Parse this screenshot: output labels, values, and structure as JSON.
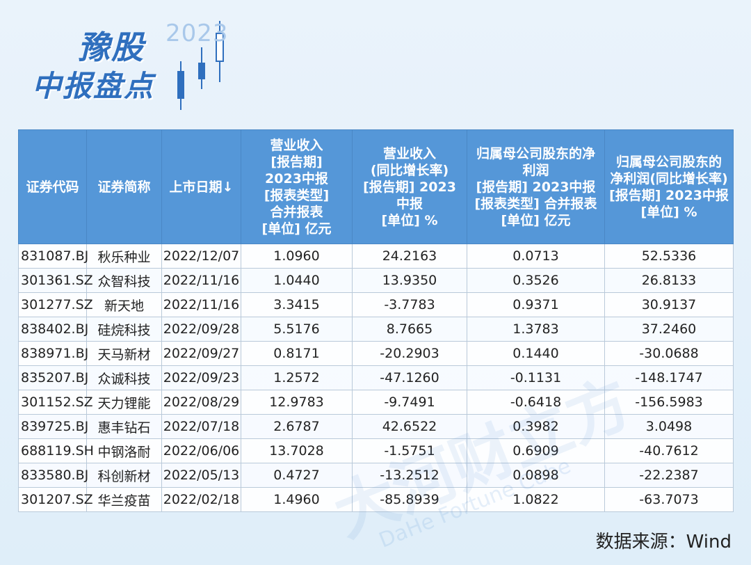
{
  "header": {
    "title": "豫股",
    "subtitle": "中报盘点",
    "year": "2023"
  },
  "table": {
    "headers": [
      "证券代码",
      "证券简称",
      "上市日期↓",
      "营业收入\n[报告期]\n2023中报\n[报表类型]\n合并报表\n[单位] 亿元",
      "营业收入\n(同比增长率)\n[报告期] 2023\n中报\n[单位] %",
      "归属母公司股东的净\n利润\n[报告期] 2023中报\n[报表类型] 合并报表\n[单位] 亿元",
      "归属母公司股东的\n净利润(同比增长率)\n[报告期] 2023中报\n[单位] %"
    ],
    "rows": [
      [
        "831087.BJ",
        "秋乐种业",
        "2022/12/07",
        "1.0960",
        "24.2163",
        "0.0713",
        "52.5336"
      ],
      [
        "301361.SZ",
        "众智科技",
        "2022/11/16",
        "1.0440",
        "13.9350",
        "0.3526",
        "26.8133"
      ],
      [
        "301277.SZ",
        "新天地",
        "2022/11/16",
        "3.3415",
        "-3.7783",
        "0.9371",
        "30.9137"
      ],
      [
        "838402.BJ",
        "硅烷科技",
        "2022/09/28",
        "5.5176",
        "8.7665",
        "1.3783",
        "37.2460"
      ],
      [
        "838971.BJ",
        "天马新材",
        "2022/09/27",
        "0.8171",
        "-20.2903",
        "0.1440",
        "-30.0688"
      ],
      [
        "835207.BJ",
        "众诚科技",
        "2022/09/23",
        "1.2572",
        "-47.1260",
        "-0.1131",
        "-148.1747"
      ],
      [
        "301152.SZ",
        "天力锂能",
        "2022/08/29",
        "12.9783",
        "-9.7491",
        "-0.6418",
        "-156.5983"
      ],
      [
        "839725.BJ",
        "惠丰钻石",
        "2022/07/18",
        "2.6787",
        "42.6522",
        "0.3982",
        "3.0498"
      ],
      [
        "688119.SH",
        "中钢洛耐",
        "2022/06/06",
        "13.7028",
        "-1.5751",
        "0.6909",
        "-40.7612"
      ],
      [
        "833580.BJ",
        "科创新材",
        "2022/05/13",
        "0.4727",
        "-13.2512",
        "0.0898",
        "-22.2387"
      ],
      [
        "301207.SZ",
        "华兰疫苗",
        "2022/02/18",
        "1.4960",
        "-85.8939",
        "1.0822",
        "-63.7073"
      ]
    ]
  },
  "watermark": {
    "text": "大河财立方",
    "en": "DaHe Fortune Cube"
  },
  "footer": {
    "source": "数据来源：Wind"
  },
  "colors": {
    "header_bg": "#5597d8",
    "title": "#2f6fbe",
    "page_bg": "#e4f0fa"
  }
}
